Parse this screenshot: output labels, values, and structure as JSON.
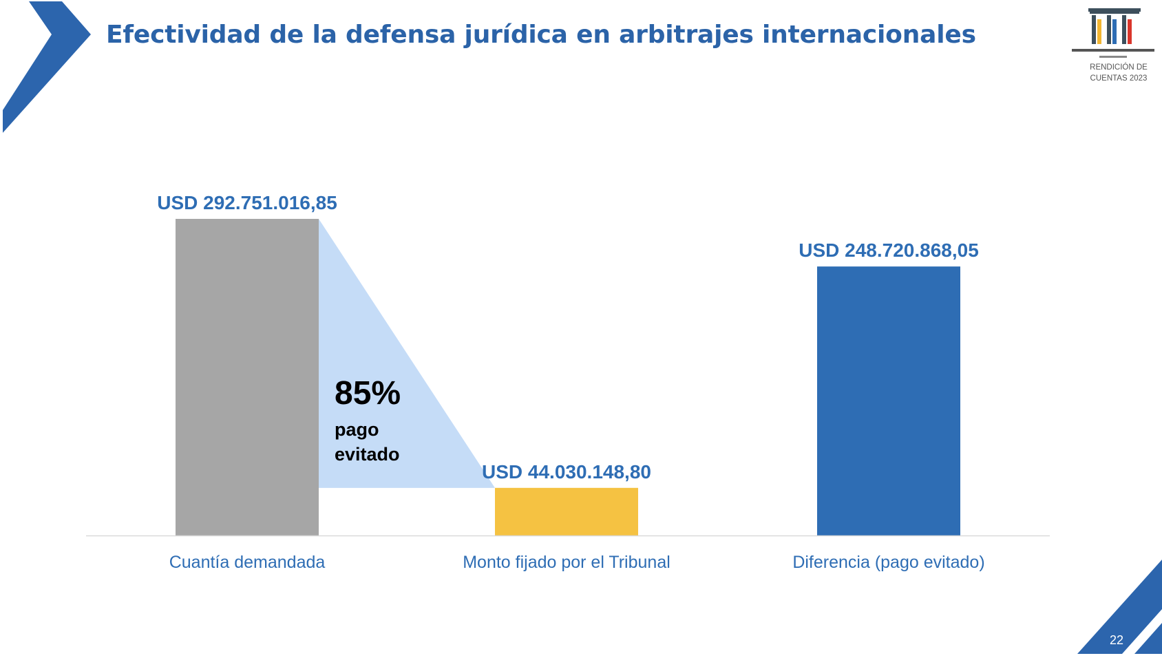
{
  "title": "Efectividad de la defensa jurídica en arbitrajes internacionales",
  "logo": {
    "caption_line1": "RENDICIÓN DE",
    "caption_line2": "CUENTAS 2023"
  },
  "page_number": "22",
  "annotation": {
    "percent": "85%",
    "line1": "pago",
    "line2": "evitado"
  },
  "colors": {
    "title": "#2b63a8",
    "label": "#2e6db4",
    "bar_claimed": "#a6a6a6",
    "bar_awarded": "#f5c242",
    "bar_difference": "#2e6db4",
    "avoided_wedge": "#c5dcf7",
    "axis": "#d9d9d9"
  },
  "chart_data": {
    "type": "bar",
    "categories": [
      "Cuantía demandada",
      "Monto fijado por el Tribunal",
      "Diferencia (pago evitado)"
    ],
    "values": [
      292751016.85,
      44030148.8,
      248720868.05
    ],
    "value_labels": [
      "USD 292.751.016,85",
      "USD 44.030.148,80",
      "USD 248.720.868,05"
    ],
    "bar_colors": [
      "#a6a6a6",
      "#f5c242",
      "#2e6db4"
    ],
    "title": "",
    "xlabel": "",
    "ylabel": "",
    "ylim": [
      0,
      292751016.85
    ],
    "grid": false,
    "legend": "none"
  }
}
